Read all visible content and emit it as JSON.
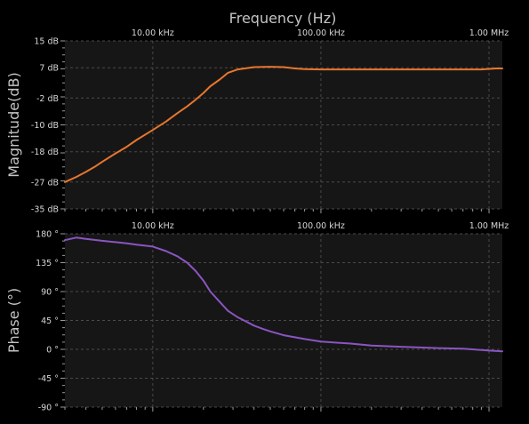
{
  "chart_data": {
    "type": "line",
    "title": "Frequency (Hz)",
    "x_scale": "log",
    "xlim": [
      3000,
      1200000
    ],
    "x_ticks": [
      10000,
      100000,
      1000000
    ],
    "x_tick_labels": [
      "10.00 kHz",
      "100.00 kHz",
      "1.00 MHz"
    ],
    "grid": true,
    "background_color": "#161616",
    "grid_color": "#4a4a4a",
    "panels": [
      {
        "id": "magnitude",
        "ylabel": "Magnitude(dB)",
        "ylim": [
          -35,
          15
        ],
        "y_ticks": [
          15,
          7,
          -2,
          -10,
          -18,
          -27,
          -35
        ],
        "y_tick_labels": [
          "15 dB",
          "7 dB",
          "-2 dB",
          "-10 dB",
          "-18 dB",
          "-27 dB",
          "-35 dB"
        ],
        "series": [
          {
            "color": "#e8762e",
            "x": [
              3000,
              3500,
              4000,
              4500,
              5000,
              6000,
              7000,
              8000,
              10000,
              12000,
              14000,
              16000,
              18000,
              20000,
              22000,
              25000,
              28000,
              32000,
              40000,
              50000,
              60000,
              70000,
              80000,
              100000,
              200000,
              400000,
              700000,
              900000,
              1100000,
              1200000
            ],
            "y": [
              -27,
              -25.5,
              -24,
              -22.5,
              -21,
              -18.5,
              -16.5,
              -14.5,
              -11.5,
              -9,
              -6.5,
              -4.5,
              -2.5,
              -0.5,
              1.5,
              3.5,
              5.5,
              6.5,
              7.2,
              7.3,
              7.2,
              6.8,
              6.6,
              6.5,
              6.5,
              6.5,
              6.5,
              6.5,
              6.8,
              6.8
            ]
          }
        ]
      },
      {
        "id": "phase",
        "ylabel": "Phase (°)",
        "ylim": [
          -90,
          180
        ],
        "y_ticks": [
          180,
          135,
          90,
          45,
          0,
          -45,
          -90
        ],
        "y_tick_labels": [
          "180 °",
          "135 °",
          "90 °",
          "45 °",
          "0 °",
          "-45 °",
          "-90 °"
        ],
        "series": [
          {
            "color": "#8a55c2",
            "x": [
              3000,
              3500,
              4000,
              5000,
              6000,
              7000,
              8000,
              10000,
              12000,
              14000,
              16000,
              18000,
              20000,
              22000,
              25000,
              28000,
              32000,
              36000,
              40000,
              45000,
              50000,
              60000,
              80000,
              100000,
              150000,
              200000,
              300000,
              500000,
              700000,
              1000000,
              1200000
            ],
            "y": [
              170,
              174,
              172,
              169,
              167,
              165,
              163,
              160,
              153,
              145,
              135,
              122,
              107,
              90,
              74,
              60,
              50,
              43,
              37,
              32,
              28,
              22,
              16,
              12,
              9,
              6,
              4,
              2,
              1,
              -2,
              -3
            ]
          }
        ]
      }
    ]
  }
}
